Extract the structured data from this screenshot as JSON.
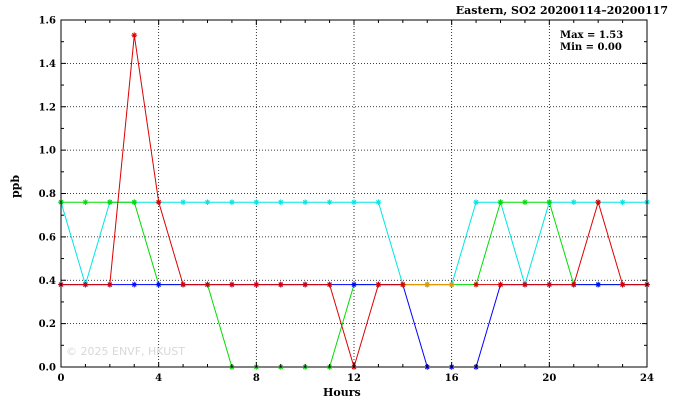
{
  "chart_data": {
    "type": "line",
    "title": "Eastern, SO2 20200114–20200117",
    "xlabel": "Hours",
    "ylabel": "ppb",
    "xlim": [
      0,
      24
    ],
    "ylim": [
      0,
      1.6
    ],
    "xticks": [
      0,
      4,
      8,
      12,
      16,
      20,
      24
    ],
    "yticks": [
      0.0,
      0.2,
      0.4,
      0.6,
      0.8,
      1.0,
      1.2,
      1.4,
      1.6
    ],
    "xtick_labels": [
      "0",
      "4",
      "8",
      "12",
      "16",
      "20",
      "24"
    ],
    "ytick_labels": [
      "0.0",
      "0.2",
      "0.4",
      "0.6",
      "0.8",
      "1.0",
      "1.2",
      "1.4",
      "1.6"
    ],
    "grid": true,
    "stats": {
      "max": "Max = 1.53",
      "min": "Min = 0.00"
    },
    "x": [
      0,
      1,
      2,
      3,
      4,
      5,
      6,
      7,
      8,
      9,
      10,
      11,
      12,
      13,
      14,
      15,
      16,
      17,
      18,
      19,
      20,
      21,
      22,
      23,
      24
    ],
    "series": [
      {
        "color": "#00e5e5",
        "values": [
          0.76,
          0.38,
          0.76,
          0.76,
          0.76,
          0.76,
          0.76,
          0.76,
          0.76,
          0.76,
          0.76,
          0.76,
          0.76,
          0.76,
          0.38,
          0.38,
          0.38,
          0.76,
          0.76,
          0.38,
          0.76,
          0.76,
          0.76,
          0.76,
          0.76
        ]
      },
      {
        "color": "#00dd00",
        "values": [
          0.76,
          0.76,
          0.76,
          0.76,
          0.38,
          0.38,
          0.38,
          0.0,
          0.0,
          0.0,
          0.0,
          0.0,
          0.38,
          0.38,
          0.38,
          0.38,
          0.38,
          0.38,
          0.76,
          0.76,
          0.76,
          0.38,
          0.38,
          0.38,
          0.38
        ]
      },
      {
        "color": "#0000ff",
        "values": [
          0.38,
          0.38,
          0.38,
          0.38,
          0.38,
          0.38,
          0.38,
          0.38,
          0.38,
          0.38,
          0.38,
          0.38,
          0.38,
          0.38,
          0.38,
          0.0,
          0.0,
          0.0,
          0.38,
          0.38,
          0.38,
          0.38,
          0.38,
          0.38,
          0.38
        ]
      },
      {
        "color": "#ff8c00",
        "values": [
          null,
          null,
          null,
          null,
          null,
          null,
          null,
          null,
          null,
          null,
          null,
          null,
          null,
          null,
          0.38,
          0.38,
          0.38,
          null,
          null,
          null,
          null,
          null,
          null,
          null,
          null
        ]
      },
      {
        "color": "#dd0000",
        "values": [
          0.38,
          0.38,
          0.38,
          1.53,
          0.76,
          0.38,
          0.38,
          0.38,
          0.38,
          0.38,
          0.38,
          0.38,
          0.0,
          0.38,
          0.38,
          null,
          null,
          0.38,
          0.38,
          0.38,
          0.38,
          0.38,
          0.76,
          0.38,
          0.38
        ]
      }
    ],
    "watermark": "© 2025 ENVF, HKUST"
  }
}
